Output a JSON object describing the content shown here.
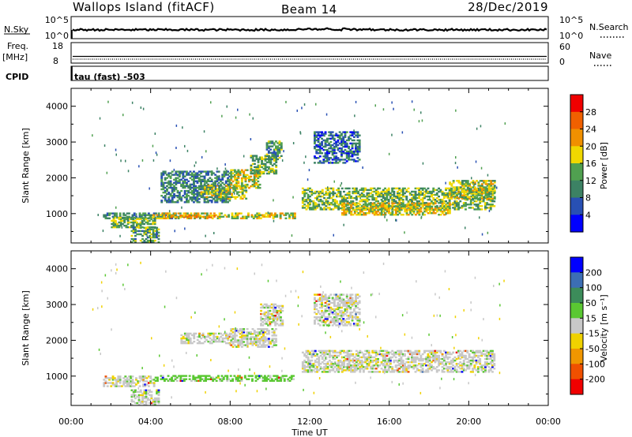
{
  "header": {
    "station": "Wallops Island (fitACF)",
    "beam": "Beam 14",
    "date": "28/Dec/2019"
  },
  "top_panels": {
    "nsky_label": "N.Sky",
    "nsky_ticks": [
      "10^5",
      "10^0"
    ],
    "nsearch_label": "N.Search",
    "nsearch_ticks": [
      "10^5",
      "10^0"
    ],
    "freq_label_1": "Freq.",
    "freq_label_2": "[MHz]",
    "freq_ticks": [
      "18",
      "8"
    ],
    "nave_label": "Nave",
    "nave_ticks": [
      "60",
      "0"
    ],
    "cpid_label": "CPID",
    "cpid_value": "tau (fast) -503"
  },
  "colors": {
    "power_scale": [
      "#0000ff",
      "#2850b4",
      "#3c8264",
      "#50a050",
      "#f0d800",
      "#f09000",
      "#f06000",
      "#f00000"
    ],
    "velocity_scale": [
      "#0000ff",
      "#3c6eb4",
      "#3c8c5a",
      "#5ac832",
      "#c8c8c8",
      "#f0d200",
      "#f09600",
      "#f05000",
      "#f00000"
    ]
  },
  "chart_data": [
    {
      "type": "heatmap",
      "quantity": "power",
      "xlabel": "Time UT",
      "ylabel": "Slant Range [km]",
      "xlim": [
        0,
        24
      ],
      "x_ticks": [
        "00:00",
        "04:00",
        "08:00",
        "12:00",
        "16:00",
        "20:00",
        "00:00"
      ],
      "ylim": [
        180,
        4500
      ],
      "y_ticks": [
        1000,
        2000,
        3000,
        4000
      ],
      "colorbar_label": "Power [dB]",
      "colorbar_ticks": [
        "4",
        "8",
        "12",
        "16",
        "20",
        "24",
        "28"
      ],
      "echo_regions": [
        {
          "t": [
            1.6,
            5.2
          ],
          "range": [
            850,
            1000
          ],
          "power": 10
        },
        {
          "t": [
            2.0,
            4.2
          ],
          "range": [
            600,
            900
          ],
          "power": 14
        },
        {
          "t": [
            3.0,
            4.4
          ],
          "range": [
            180,
            600
          ],
          "power": 12
        },
        {
          "t": [
            4.0,
            11.2
          ],
          "range": [
            850,
            1000
          ],
          "power": 18
        },
        {
          "t": [
            5.0,
            7.2
          ],
          "range": [
            880,
            960
          ],
          "power": 22
        },
        {
          "t": [
            4.5,
            8.0
          ],
          "range": [
            1300,
            2200
          ],
          "power": 10
        },
        {
          "t": [
            6.5,
            8.8
          ],
          "range": [
            1400,
            1800
          ],
          "power": 16
        },
        {
          "t": [
            8.0,
            9.5
          ],
          "range": [
            1700,
            2200
          ],
          "power": 18
        },
        {
          "t": [
            9.0,
            10.3
          ],
          "range": [
            2100,
            2600
          ],
          "power": 14
        },
        {
          "t": [
            9.8,
            10.6
          ],
          "range": [
            2500,
            3000
          ],
          "power": 12
        },
        {
          "t": [
            11.6,
            21.3
          ],
          "range": [
            1100,
            1700
          ],
          "power": 14
        },
        {
          "t": [
            13.5,
            19.0
          ],
          "range": [
            950,
            1300
          ],
          "power": 18
        },
        {
          "t": [
            19.0,
            21.3
          ],
          "range": [
            1400,
            1900
          ],
          "power": 16
        },
        {
          "t": [
            12.2,
            14.5
          ],
          "range": [
            2400,
            3300
          ],
          "power": 8
        }
      ]
    },
    {
      "type": "heatmap",
      "quantity": "velocity",
      "xlabel": "Time UT",
      "ylabel": "Slant Range [km]",
      "xlim": [
        0,
        24
      ],
      "x_ticks": [
        "00:00",
        "04:00",
        "08:00",
        "12:00",
        "16:00",
        "20:00",
        "00:00"
      ],
      "ylim": [
        180,
        4500
      ],
      "y_ticks": [
        1000,
        2000,
        3000,
        4000
      ],
      "colorbar_label": "Velocity [m s⁻¹]",
      "colorbar_ticks": [
        "200",
        "100",
        "50",
        "15",
        "-15",
        "-50",
        "-100",
        "-200"
      ],
      "echo_regions": [
        {
          "t": [
            1.6,
            4.2
          ],
          "range": [
            700,
            1000
          ],
          "velocity": 0
        },
        {
          "t": [
            3.0,
            4.4
          ],
          "range": [
            180,
            600
          ],
          "velocity": 0
        },
        {
          "t": [
            4.2,
            11.2
          ],
          "range": [
            850,
            1000
          ],
          "velocity": 30
        },
        {
          "t": [
            5.5,
            8.0
          ],
          "range": [
            1900,
            2200
          ],
          "velocity": 0
        },
        {
          "t": [
            8.0,
            10.3
          ],
          "range": [
            1800,
            2300
          ],
          "velocity": 0
        },
        {
          "t": [
            9.5,
            10.6
          ],
          "range": [
            2400,
            3000
          ],
          "velocity": 0
        },
        {
          "t": [
            11.6,
            21.3
          ],
          "range": [
            1100,
            1700
          ],
          "velocity": 0
        },
        {
          "t": [
            12.2,
            14.5
          ],
          "range": [
            2400,
            3300
          ],
          "velocity": 0
        }
      ]
    }
  ]
}
